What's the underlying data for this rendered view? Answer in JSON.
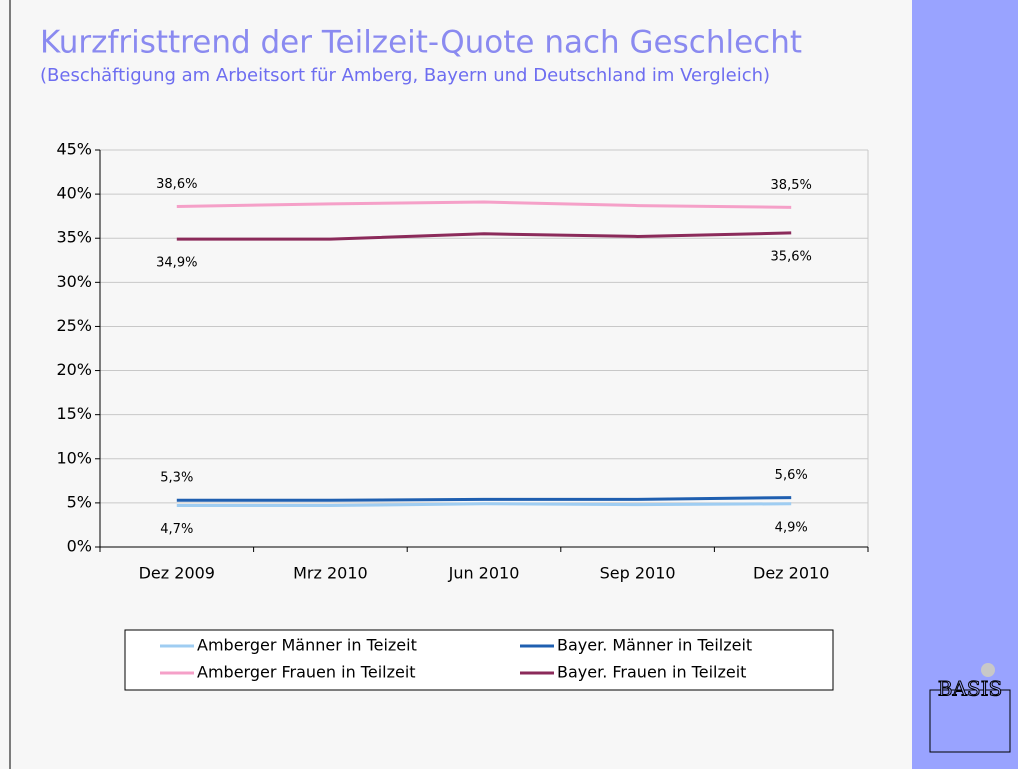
{
  "chart_data": {
    "type": "line",
    "title": "Kurzfristtrend der Teilzeit-Quote nach Geschlecht",
    "subtitle": "(Beschäftigung am Arbeitsort für Amberg, Bayern und Deutschland im Vergleich)",
    "categories": [
      "Dez 2009",
      "Mrz 2010",
      "Jun 2010",
      "Sep 2010",
      "Dez 2010"
    ],
    "series": [
      {
        "name": "Amberger Männer in Teizeit",
        "color": "#9fcdf2",
        "values": [
          4.7,
          4.7,
          4.9,
          4.8,
          4.9
        ],
        "value_labels": [
          "4,7%",
          null,
          null,
          null,
          "4,9%"
        ],
        "label_side": "below"
      },
      {
        "name": "Bayer. Männer in Teilzeit",
        "color": "#1f5fb0",
        "values": [
          5.3,
          5.3,
          5.4,
          5.4,
          5.6
        ],
        "value_labels": [
          "5,3%",
          null,
          null,
          null,
          "5,6%"
        ],
        "label_side": "above"
      },
      {
        "name": "Amberger Frauen in Teilzeit",
        "color": "#f5a0c8",
        "values": [
          38.6,
          38.9,
          39.1,
          38.7,
          38.5
        ],
        "value_labels": [
          "38,6%",
          null,
          null,
          null,
          "38,5%"
        ],
        "label_side": "above"
      },
      {
        "name": "Bayer. Frauen in Teilzeit",
        "color": "#8b2a5a",
        "values": [
          34.9,
          34.9,
          35.5,
          35.2,
          35.6
        ],
        "value_labels": [
          "34,9%",
          null,
          null,
          null,
          "35,6%"
        ],
        "label_side": "below"
      }
    ],
    "ylim": [
      0,
      45
    ],
    "yticks": [
      {
        "value": 0,
        "label": "0%"
      },
      {
        "value": 5,
        "label": "5%"
      },
      {
        "value": 10,
        "label": "10%"
      },
      {
        "value": 15,
        "label": "15%"
      },
      {
        "value": 20,
        "label": "20%"
      },
      {
        "value": 25,
        "label": "25%"
      },
      {
        "value": 30,
        "label": "30%"
      },
      {
        "value": 35,
        "label": "35%"
      },
      {
        "value": 40,
        "label": "40%"
      },
      {
        "value": 45,
        "label": "45%"
      }
    ],
    "grid": true,
    "legend": "bottom"
  },
  "logo": "BASIS"
}
